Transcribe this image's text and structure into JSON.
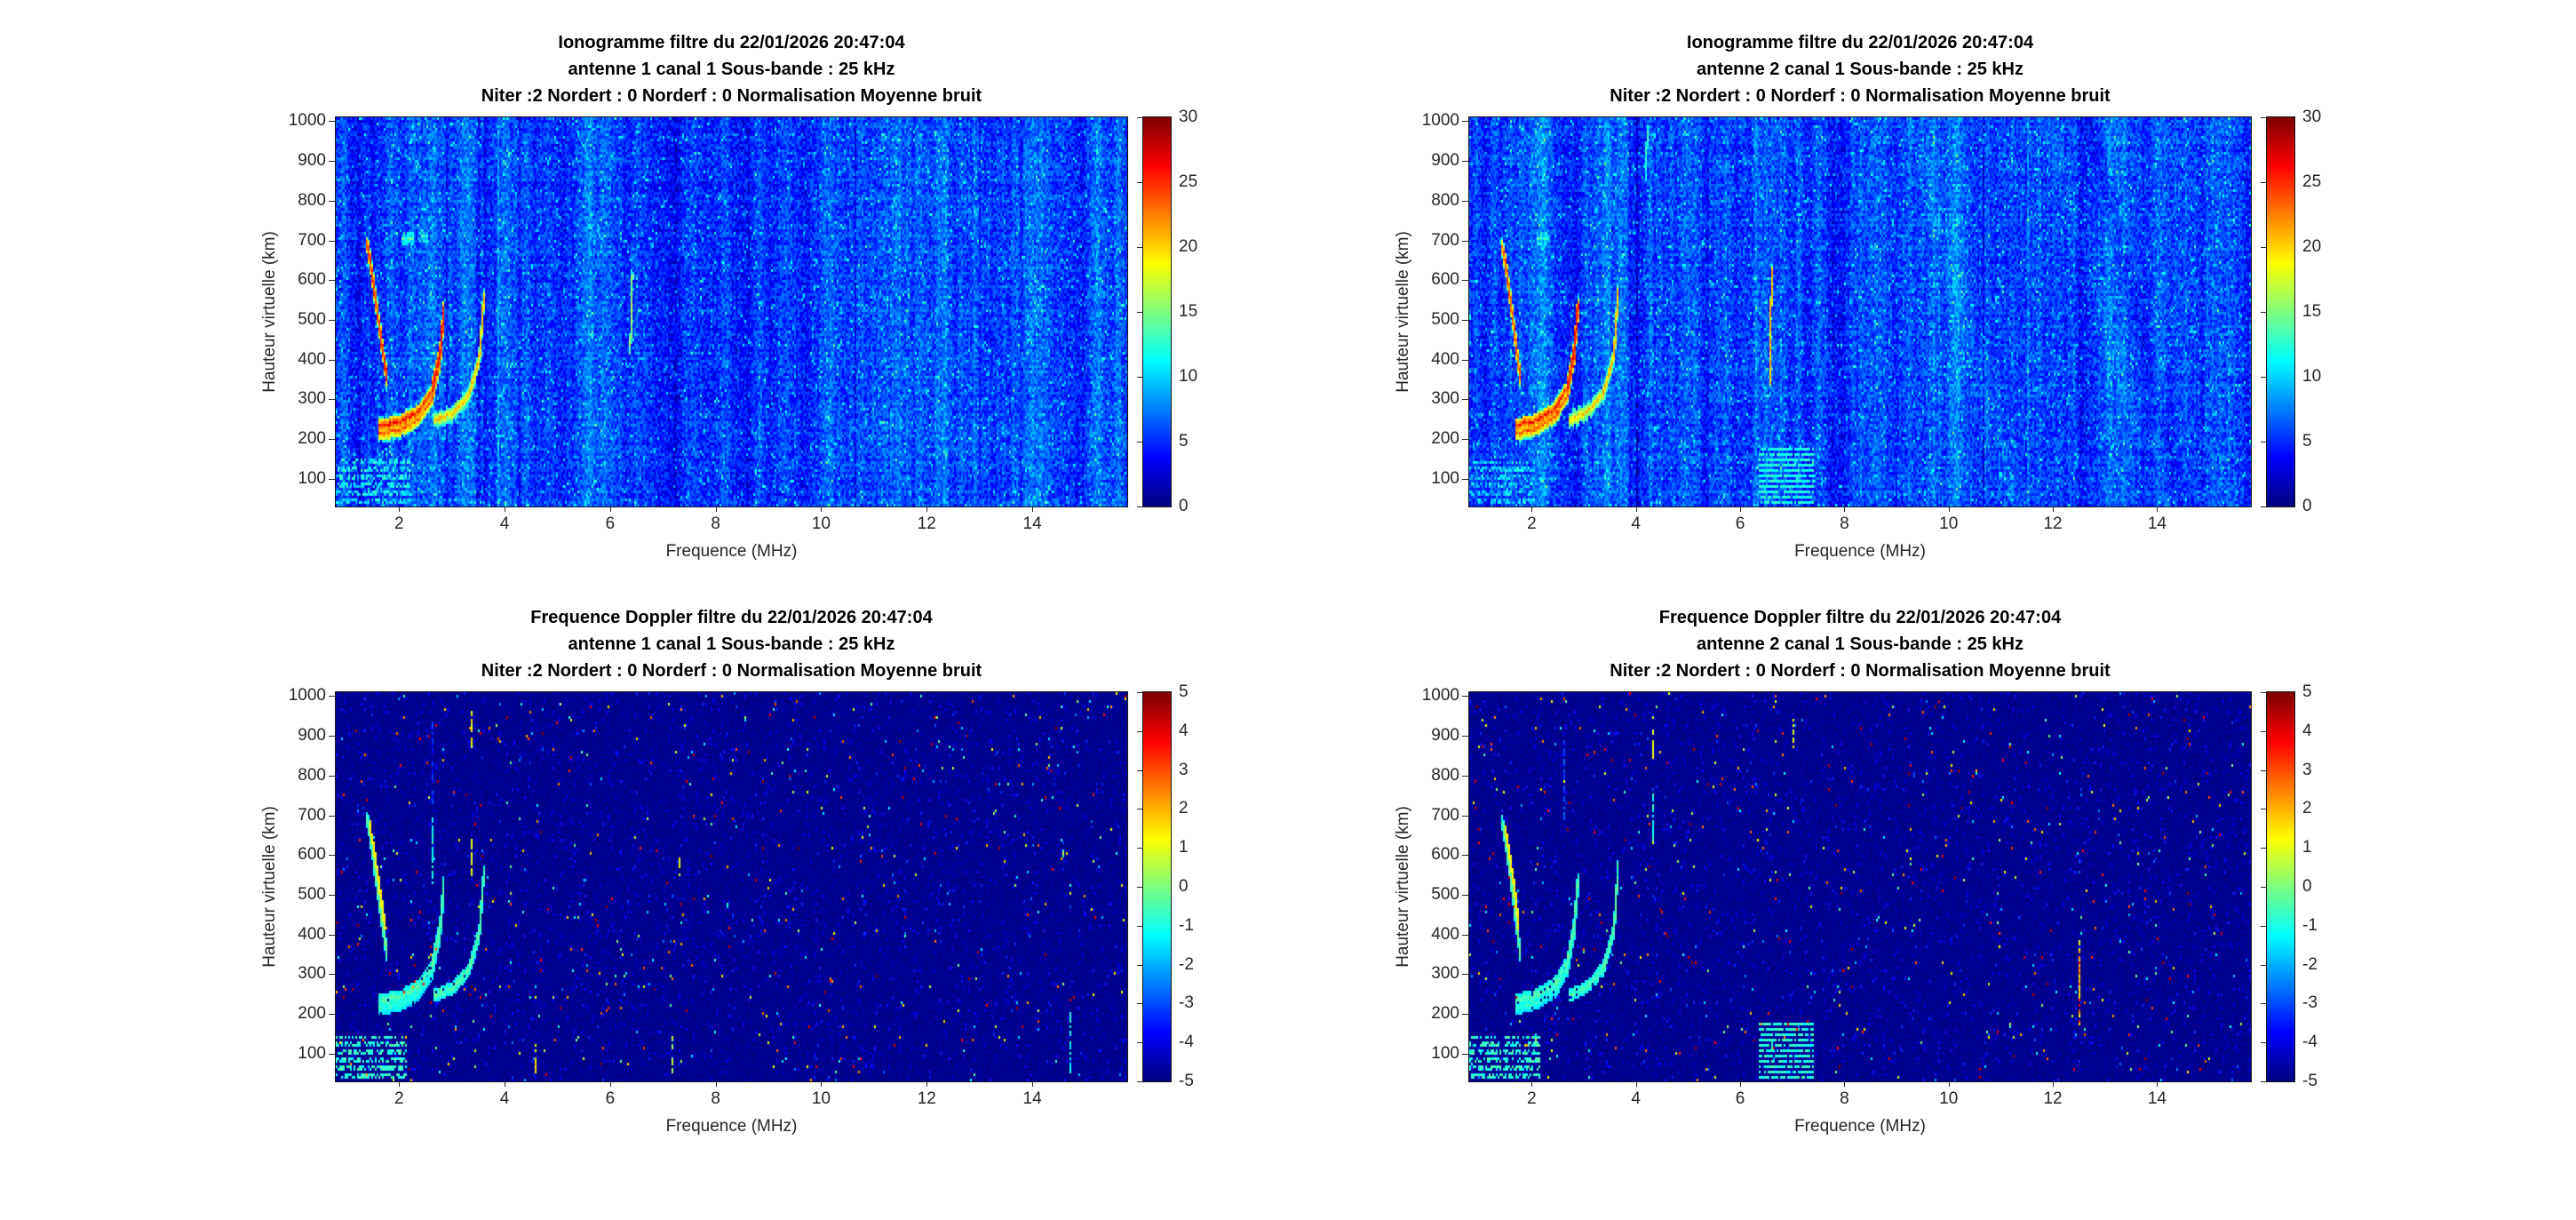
{
  "window": {
    "background": "#ffffff",
    "text_color": "#262626",
    "title_color": "#000000"
  },
  "chart_data": [
    {
      "id": "ionogramme-antenne-1",
      "type": "heatmap",
      "style": "ionogram",
      "title": [
        "Ionogramme filtre du 22/01/2026 20:47:04",
        "antenne 1 canal 1 Sous-bande : 25 kHz",
        "Niter :2 Nordert : 0 Norderf : 0 Normalisation Moyenne bruit"
      ],
      "xlabel": "Frequence (MHz)",
      "ylabel": "Hauteur virtuelle (km)",
      "xlim": [
        0.8,
        15.8
      ],
      "ylim": [
        30,
        1010
      ],
      "xticks": [
        2,
        4,
        6,
        8,
        10,
        12,
        14
      ],
      "yticks": [
        100,
        200,
        300,
        400,
        500,
        600,
        700,
        800,
        900,
        1000
      ],
      "colorbar": {
        "range": [
          0,
          30
        ],
        "ticks": [
          0,
          5,
          10,
          15,
          20,
          25,
          30
        ]
      },
      "colormap": "jet",
      "background_level": 5.8,
      "noise_amplitude": 2.1,
      "seed": 101,
      "echo_traces": [
        {
          "name": "oblique-echo",
          "points": [
            [
              1.38,
              695
            ],
            [
              1.48,
              612
            ],
            [
              1.58,
              512
            ],
            [
              1.68,
              420
            ],
            [
              1.75,
              352
            ]
          ],
          "level": 24,
          "width": 2
        },
        {
          "name": "f-layer-hop1",
          "points": [
            [
              1.6,
              236
            ],
            [
              2.0,
              246
            ],
            [
              2.35,
              272
            ],
            [
              2.6,
              322
            ],
            [
              2.76,
              424
            ],
            [
              2.83,
              532
            ]
          ],
          "level": 25,
          "width": 2,
          "double": true
        },
        {
          "name": "f-layer-hop2",
          "points": [
            [
              2.66,
              250
            ],
            [
              3.0,
              268
            ],
            [
              3.3,
              312
            ],
            [
              3.5,
              402
            ],
            [
              3.59,
              562
            ]
          ],
          "level": 20,
          "width": 2
        },
        {
          "name": "weak-streak",
          "points": [
            [
              6.36,
              428
            ],
            [
              6.4,
              616
            ]
          ],
          "level": 15,
          "width": 1
        },
        {
          "name": "e-dash-1",
          "points": [
            [
              2.05,
              706
            ],
            [
              2.25,
              708
            ]
          ],
          "level": 13,
          "width": 1
        },
        {
          "name": "e-dash-2",
          "points": [
            [
              2.42,
              712
            ],
            [
              2.52,
              712
            ]
          ],
          "level": 12,
          "width": 1
        }
      ],
      "interference_bands": [
        {
          "f": 2.9,
          "delta": -1.3,
          "w": 0.05
        },
        {
          "f": 3.5,
          "delta": -2.8,
          "w": 0.06
        },
        {
          "f": 3.63,
          "delta": -2.0,
          "w": 0.05
        },
        {
          "f": 4.28,
          "delta": -2.3,
          "w": 0.06
        },
        {
          "f": 6.9,
          "delta": -1.1,
          "w": 0.06
        },
        {
          "f": 8.38,
          "delta": -1.2,
          "w": 0.22
        },
        {
          "f": 8.62,
          "delta": -1.8,
          "w": 0.07
        },
        {
          "f": 9.15,
          "delta": -1.0,
          "w": 0.12
        },
        {
          "f": 10.45,
          "delta": -0.8,
          "w": 0.14
        },
        {
          "f": 12.1,
          "delta": -0.9,
          "w": 0.1
        },
        {
          "f": 13.55,
          "delta": -1.6,
          "w": 0.08
        },
        {
          "f": 13.78,
          "delta": -1.3,
          "w": 0.06
        },
        {
          "f": 0.95,
          "delta": 1.4,
          "w": 0.1
        },
        {
          "f": 5.95,
          "delta": 0.9,
          "w": 0.06
        },
        {
          "f": 7.6,
          "delta": 0.7,
          "w": 0.05
        }
      ],
      "diagonal_bands": [],
      "stripe_blocks": [],
      "dashes": [],
      "corner_stripes": {
        "fmax": 2.15,
        "hmax": 150,
        "level": 11
      }
    },
    {
      "id": "ionogramme-antenne-2",
      "type": "heatmap",
      "style": "ionogram",
      "title": [
        "Ionogramme filtre du 22/01/2026 20:47:04",
        "antenne 2 canal 1 Sous-bande : 25 kHz",
        "Niter :2 Nordert : 0 Norderf : 0 Normalisation Moyenne bruit"
      ],
      "xlabel": "Frequence (MHz)",
      "ylabel": "Hauteur virtuelle (km)",
      "xlim": [
        0.8,
        15.8
      ],
      "ylim": [
        30,
        1010
      ],
      "xticks": [
        2,
        4,
        6,
        8,
        10,
        12,
        14
      ],
      "yticks": [
        100,
        200,
        300,
        400,
        500,
        600,
        700,
        800,
        900,
        1000
      ],
      "colorbar": {
        "range": [
          0,
          30
        ],
        "ticks": [
          0,
          5,
          10,
          15,
          20,
          25,
          30
        ]
      },
      "colormap": "jet",
      "background_level": 5.8,
      "noise_amplitude": 2.1,
      "seed": 202,
      "echo_traces": [
        {
          "name": "oblique-echo",
          "points": [
            [
              1.42,
              690
            ],
            [
              1.52,
              608
            ],
            [
              1.62,
              508
            ],
            [
              1.7,
              418
            ],
            [
              1.77,
              352
            ]
          ],
          "level": 23,
          "width": 2
        },
        {
          "name": "f-layer-hop1",
          "points": [
            [
              1.68,
              238
            ],
            [
              2.08,
              250
            ],
            [
              2.42,
              278
            ],
            [
              2.66,
              330
            ],
            [
              2.8,
              432
            ],
            [
              2.87,
              540
            ]
          ],
          "level": 25,
          "width": 2,
          "double": true
        },
        {
          "name": "f-layer-hop2",
          "points": [
            [
              2.72,
              252
            ],
            [
              3.06,
              272
            ],
            [
              3.36,
              318
            ],
            [
              3.56,
              412
            ],
            [
              3.64,
              572
            ]
          ],
          "level": 20,
          "width": 2
        },
        {
          "name": "orange-streak",
          "points": [
            [
              6.55,
              348
            ],
            [
              6.59,
              628
            ]
          ],
          "level": 20,
          "width": 1
        },
        {
          "name": "high-cyan-dash",
          "points": [
            [
              4.18,
              872
            ],
            [
              4.2,
              988
            ]
          ],
          "level": 12,
          "width": 1
        },
        {
          "name": "e-dash-1",
          "points": [
            [
              2.1,
              708
            ],
            [
              2.3,
              710
            ]
          ],
          "level": 12,
          "width": 1
        }
      ],
      "interference_bands": [
        {
          "f": 3.55,
          "delta": -1.8,
          "w": 0.05
        },
        {
          "f": 3.9,
          "delta": -2.6,
          "w": 0.06
        },
        {
          "f": 4.03,
          "delta": -2.2,
          "w": 0.05
        },
        {
          "f": 4.35,
          "delta": -1.6,
          "w": 0.05
        },
        {
          "f": 7.8,
          "delta": -1.0,
          "w": 0.16
        },
        {
          "f": 9.0,
          "delta": -0.8,
          "w": 0.2
        },
        {
          "f": 12.25,
          "delta": -2.0,
          "w": 0.13
        },
        {
          "f": 12.52,
          "delta": -1.3,
          "w": 0.08
        },
        {
          "f": 0.95,
          "delta": 1.4,
          "w": 0.1
        },
        {
          "f": 6.3,
          "delta": 0.8,
          "w": 0.05
        },
        {
          "f": 10.1,
          "delta": 0.6,
          "w": 0.09
        }
      ],
      "diagonal_bands": [
        {
          "f0": 9.3,
          "h0": 1010,
          "f1": 11.3,
          "h1": 30,
          "delta": 1.0,
          "w": 0.35
        },
        {
          "f0": 11.9,
          "h0": 1010,
          "f1": 13.7,
          "h1": 180,
          "delta": 0.9,
          "w": 0.28
        },
        {
          "f0": 12.7,
          "h0": 1010,
          "f1": 14.5,
          "h1": 30,
          "delta": -1.3,
          "w": 0.22
        }
      ],
      "stripe_blocks": [
        {
          "f0": 6.38,
          "f1": 7.35,
          "h0": 45,
          "h1": 175,
          "level": 12
        }
      ],
      "dashes": [],
      "corner_stripes": {
        "fmax": 2.0,
        "hmax": 140,
        "level": 10
      }
    },
    {
      "id": "doppler-antenne-1",
      "type": "heatmap",
      "style": "doppler",
      "title": [
        "Frequence Doppler filtre du 22/01/2026 20:47:04",
        "antenne 1 canal 1 Sous-bande : 25 kHz",
        "Niter :2 Nordert : 0 Norderf : 0 Normalisation Moyenne bruit"
      ],
      "xlabel": "Frequence (MHz)",
      "ylabel": "Hauteur virtuelle (km)",
      "xlim": [
        0.8,
        15.8
      ],
      "ylim": [
        30,
        1010
      ],
      "xticks": [
        2,
        4,
        6,
        8,
        10,
        12,
        14
      ],
      "yticks": [
        100,
        200,
        300,
        400,
        500,
        600,
        700,
        800,
        900,
        1000
      ],
      "colorbar": {
        "range": [
          -5,
          5
        ],
        "ticks": [
          -5,
          -4,
          -3,
          -2,
          -1,
          0,
          1,
          2,
          3,
          4,
          5
        ]
      },
      "colormap": "jet",
      "background_level": -5,
      "noise_amplitude": 0.35,
      "seed": 303,
      "echo_traces": [
        {
          "name": "oblique-echo-green",
          "points": [
            [
              1.38,
              695
            ],
            [
              1.48,
              612
            ],
            [
              1.58,
              512
            ],
            [
              1.68,
              420
            ],
            [
              1.75,
              352
            ]
          ],
          "level": -0.4,
          "width": 2
        },
        {
          "name": "oblique-echo-yellow",
          "points": [
            [
              1.43,
              678
            ],
            [
              1.53,
              598
            ],
            [
              1.63,
              505
            ],
            [
              1.71,
              428
            ]
          ],
          "level": 1.3,
          "width": 1
        },
        {
          "name": "f-layer-hop1",
          "points": [
            [
              1.6,
              236
            ],
            [
              2.0,
              246
            ],
            [
              2.35,
              272
            ],
            [
              2.6,
              322
            ],
            [
              2.76,
              424
            ],
            [
              2.83,
              532
            ]
          ],
          "level": -0.5,
          "width": 2,
          "double": true
        },
        {
          "name": "f-layer-hop2",
          "points": [
            [
              2.66,
              250
            ],
            [
              3.0,
              268
            ],
            [
              3.3,
              312
            ],
            [
              3.5,
              402
            ],
            [
              3.59,
              562
            ]
          ],
          "level": -0.5,
          "width": 2
        }
      ],
      "interference_bands": [],
      "diagonal_bands": [],
      "stripe_blocks": [],
      "dashes": [
        {
          "f": 3.35,
          "h0": 880,
          "h1": 962,
          "level": 1.3
        },
        {
          "f": 3.35,
          "h0": 560,
          "h1": 640,
          "level": 1.0
        },
        {
          "f": 2.6,
          "h0": 740,
          "h1": 930,
          "level": -3.2
        },
        {
          "f": 2.62,
          "h0": 540,
          "h1": 700,
          "level": -1.0
        },
        {
          "f": 7.3,
          "h0": 555,
          "h1": 600,
          "level": 1.2
        },
        {
          "f": 4.55,
          "h0": 60,
          "h1": 120,
          "level": 1.5
        },
        {
          "f": 7.15,
          "h0": 60,
          "h1": 140,
          "level": 0.5
        },
        {
          "f": 14.7,
          "h0": 60,
          "h1": 200,
          "level": -1.0
        }
      ],
      "corner_stripes": {
        "fmax": 2.1,
        "hmax": 140,
        "level": -0.8
      }
    },
    {
      "id": "doppler-antenne-2",
      "type": "heatmap",
      "style": "doppler",
      "title": [
        "Frequence Doppler filtre du 22/01/2026 20:47:04",
        "antenne 2 canal 1 Sous-bande : 25 kHz",
        "Niter :2 Nordert : 0 Norderf : 0 Normalisation Moyenne bruit"
      ],
      "xlabel": "Frequence (MHz)",
      "ylabel": "Hauteur virtuelle (km)",
      "xlim": [
        0.8,
        15.8
      ],
      "ylim": [
        30,
        1010
      ],
      "xticks": [
        2,
        4,
        6,
        8,
        10,
        12,
        14
      ],
      "yticks": [
        100,
        200,
        300,
        400,
        500,
        600,
        700,
        800,
        900,
        1000
      ],
      "colorbar": {
        "range": [
          -5,
          5
        ],
        "ticks": [
          -5,
          -4,
          -3,
          -2,
          -1,
          0,
          1,
          2,
          3,
          4,
          5
        ]
      },
      "colormap": "jet",
      "background_level": -5,
      "noise_amplitude": 0.35,
      "seed": 404,
      "echo_traces": [
        {
          "name": "oblique-echo-green",
          "points": [
            [
              1.42,
              690
            ],
            [
              1.52,
              608
            ],
            [
              1.62,
              508
            ],
            [
              1.7,
              418
            ],
            [
              1.77,
              352
            ]
          ],
          "level": -0.4,
          "width": 2
        },
        {
          "name": "oblique-echo-yellow",
          "points": [
            [
              1.47,
              675
            ],
            [
              1.57,
              595
            ],
            [
              1.67,
              502
            ],
            [
              1.73,
              426
            ]
          ],
          "level": 1.3,
          "width": 1
        },
        {
          "name": "f-layer-hop1",
          "points": [
            [
              1.68,
              238
            ],
            [
              2.08,
              250
            ],
            [
              2.42,
              278
            ],
            [
              2.66,
              330
            ],
            [
              2.8,
              432
            ],
            [
              2.87,
              540
            ]
          ],
          "level": -0.5,
          "width": 2,
          "double": true
        },
        {
          "name": "f-layer-hop2",
          "points": [
            [
              2.72,
              252
            ],
            [
              3.06,
              272
            ],
            [
              3.36,
              318
            ],
            [
              3.56,
              412
            ],
            [
              3.64,
              572
            ]
          ],
          "level": -0.5,
          "width": 2
        }
      ],
      "interference_bands": [],
      "diagonal_bands": [],
      "stripe_blocks": [
        {
          "f0": 6.38,
          "f1": 7.35,
          "h0": 45,
          "h1": 175,
          "level": -0.9
        }
      ],
      "dashes": [
        {
          "f": 4.3,
          "h0": 640,
          "h1": 760,
          "level": -1.0
        },
        {
          "f": 4.3,
          "h0": 850,
          "h1": 950,
          "level": 1.3
        },
        {
          "f": 2.6,
          "h0": 700,
          "h1": 900,
          "level": -3.0
        },
        {
          "f": 12.5,
          "h0": 180,
          "h1": 420,
          "level": 2.5,
          "jitter": 3
        },
        {
          "f": 7.0,
          "h0": 880,
          "h1": 940,
          "level": 1.2
        },
        {
          "f": 6.6,
          "h0": 60,
          "h1": 160,
          "level": -0.8
        }
      ],
      "corner_stripes": {
        "fmax": 2.1,
        "hmax": 140,
        "level": -0.8
      }
    }
  ]
}
